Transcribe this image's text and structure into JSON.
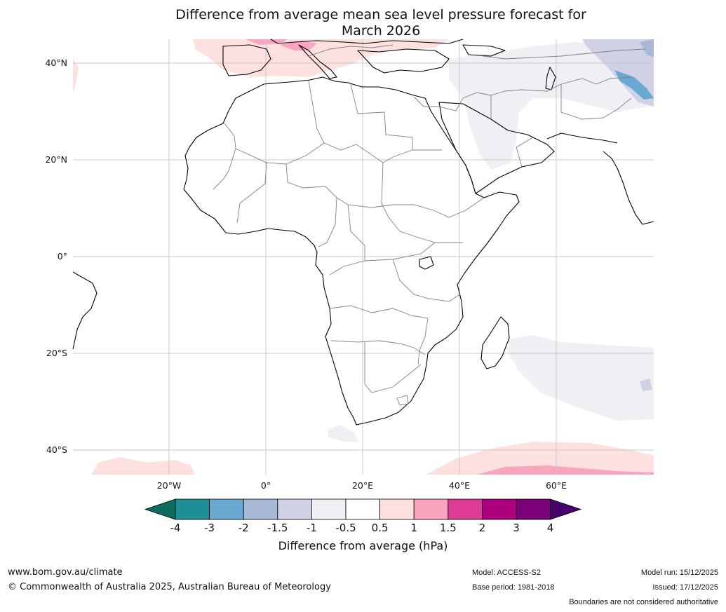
{
  "title": {
    "line1": "Difference from average mean sea level pressure forecast for",
    "line2": "March 2026"
  },
  "map": {
    "lat_labels": [
      {
        "key": "lat-40n",
        "text": "40°N"
      },
      {
        "key": "lat-20n",
        "text": "20°N"
      },
      {
        "key": "lat-0",
        "text": "0°"
      },
      {
        "key": "lat-20s",
        "text": "20°S"
      },
      {
        "key": "lat-40s",
        "text": "40°S"
      }
    ],
    "lon_labels": [
      {
        "key": "lon-20w",
        "text": "20°W"
      },
      {
        "key": "lon-0",
        "text": "0°"
      },
      {
        "key": "lon-20e",
        "text": "20°E"
      },
      {
        "key": "lon-40e",
        "text": "40°E"
      },
      {
        "key": "lon-60e",
        "text": "60°E"
      }
    ]
  },
  "colorbar": {
    "ticks": [
      "-4",
      "-3",
      "-2",
      "-1.5",
      "-1",
      "-0.5",
      "0.5",
      "1",
      "1.5",
      "2",
      "3",
      "4"
    ],
    "colors": [
      "#1f8f96",
      "#69a9d1",
      "#a7b9d7",
      "#cfd1e4",
      "#f1eef4",
      "#ffffff",
      "#fde0e0",
      "#f8a5bd",
      "#de3b95",
      "#ae017e",
      "#7a0177"
    ],
    "min_extend_color": "#0d6b5f",
    "max_extend_color": "#49006a",
    "label": "Difference from average (hPa)"
  },
  "footer": {
    "website": "www.bom.gov.au/climate",
    "copyright": "© Commonwealth of Australia 2025, Australian Bureau of Meteorology",
    "model": "Model: ACCESS-S2",
    "base_period": "Base period: 1981-2018",
    "model_run": "Model run: 15/12/2025",
    "issued": "Issued: 17/12/2025",
    "disclaimer": "Boundaries are not considered authoritative"
  }
}
